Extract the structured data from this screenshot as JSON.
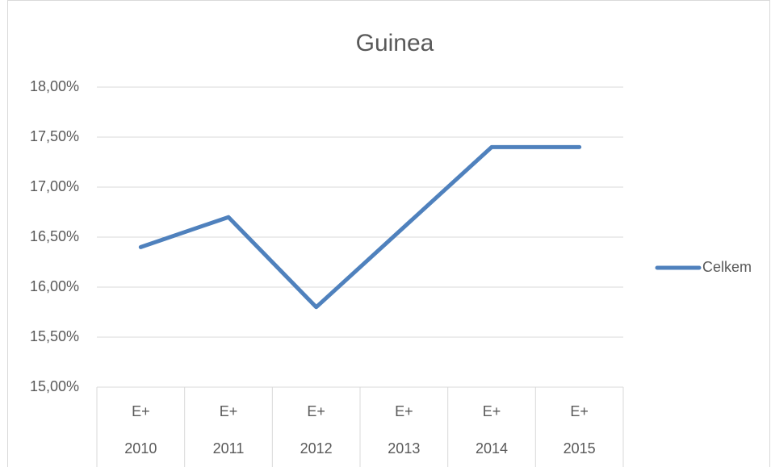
{
  "chart_data": {
    "type": "line",
    "title": "Guinea",
    "categories": [
      "E+",
      "E+",
      "E+",
      "E+",
      "E+",
      "E+"
    ],
    "category_groups": [
      "2010",
      "2011",
      "2012",
      "2013",
      "2014",
      "2015"
    ],
    "series": [
      {
        "name": "Celkem",
        "color": "#4f81bd",
        "values": [
          16.4,
          16.7,
          15.8,
          16.6,
          17.4,
          17.4
        ]
      }
    ],
    "ylim": [
      15,
      18
    ],
    "yticks": [
      {
        "value": 15,
        "label": "15,00%"
      },
      {
        "value": 15.5,
        "label": "15,50%"
      },
      {
        "value": 16,
        "label": "16,00%"
      },
      {
        "value": 16.5,
        "label": "16,50%"
      },
      {
        "value": 17,
        "label": "17,00%"
      },
      {
        "value": 17.5,
        "label": "17,50%"
      },
      {
        "value": 18,
        "label": "18,00%"
      }
    ],
    "grid": true,
    "legend": "right"
  }
}
